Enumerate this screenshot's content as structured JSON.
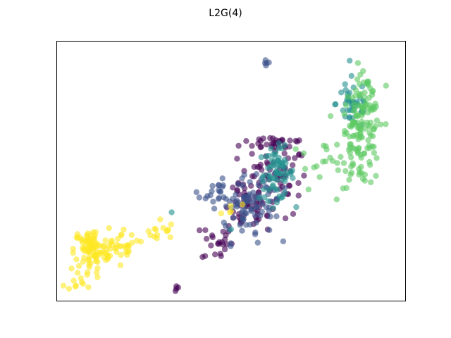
{
  "chart_data": {
    "type": "scatter",
    "title": "L2G(4)",
    "xlabel": "",
    "ylabel": "",
    "xlim": [
      0,
      100
    ],
    "ylim": [
      0,
      100
    ],
    "grid": false,
    "axes_ticks": false,
    "marker_alpha": 0.6,
    "series": [
      {
        "color": "#440154",
        "clusters": [
          {
            "cx": 62,
            "cy": 46,
            "sx": 5,
            "sy": 7,
            "n": 70
          },
          {
            "cx": 54,
            "cy": 35,
            "sx": 3,
            "sy": 4,
            "n": 35
          },
          {
            "cx": 46,
            "cy": 23,
            "sx": 2.2,
            "sy": 4,
            "n": 24
          },
          {
            "cx": 34,
            "cy": 6,
            "sx": 0.8,
            "sy": 1.2,
            "n": 4
          },
          {
            "cx": 63,
            "cy": 61,
            "sx": 5,
            "sy": 1.5,
            "n": 30
          }
        ]
      },
      {
        "color": "#3b528b",
        "clusters": [
          {
            "cx": 54,
            "cy": 35,
            "sx": 4,
            "sy": 6,
            "n": 55
          },
          {
            "cx": 47,
            "cy": 42,
            "sx": 3,
            "sy": 3,
            "n": 26
          },
          {
            "cx": 60,
            "cy": 40,
            "sx": 3,
            "sy": 4,
            "n": 25
          },
          {
            "cx": 60,
            "cy": 92,
            "sx": 0.6,
            "sy": 1.2,
            "n": 5
          }
        ]
      },
      {
        "color": "#21908d",
        "clusters": [
          {
            "cx": 63,
            "cy": 49,
            "sx": 2.5,
            "sy": 5,
            "n": 70
          },
          {
            "cx": 85,
            "cy": 76,
            "sx": 2.5,
            "sy": 5,
            "n": 45
          },
          {
            "cx": 33,
            "cy": 34,
            "sx": 0.4,
            "sy": 0.4,
            "n": 1
          },
          {
            "cx": 50,
            "cy": 28,
            "sx": 0.4,
            "sy": 0.4,
            "n": 1
          }
        ]
      },
      {
        "color": "#5dc963",
        "clusters": [
          {
            "cx": 87,
            "cy": 62,
            "sx": 3,
            "sy": 9,
            "n": 120
          },
          {
            "cx": 75,
            "cy": 55,
            "sx": 5,
            "sy": 3,
            "n": 14
          },
          {
            "cx": 88,
            "cy": 78,
            "sx": 2,
            "sy": 6,
            "n": 30
          }
        ]
      },
      {
        "color": "#fde725",
        "clusters": [
          {
            "cx": 10,
            "cy": 20,
            "sx": 2.5,
            "sy": 4,
            "n": 95
          },
          {
            "cx": 19,
            "cy": 21,
            "sx": 3.5,
            "sy": 2.5,
            "n": 30
          },
          {
            "cx": 28,
            "cy": 27,
            "sx": 3,
            "sy": 2.5,
            "n": 16
          },
          {
            "cx": 7,
            "cy": 9,
            "sx": 2,
            "sy": 2.5,
            "n": 14
          },
          {
            "cx": 50,
            "cy": 36,
            "sx": 1.5,
            "sy": 1.5,
            "n": 5
          }
        ]
      }
    ]
  }
}
